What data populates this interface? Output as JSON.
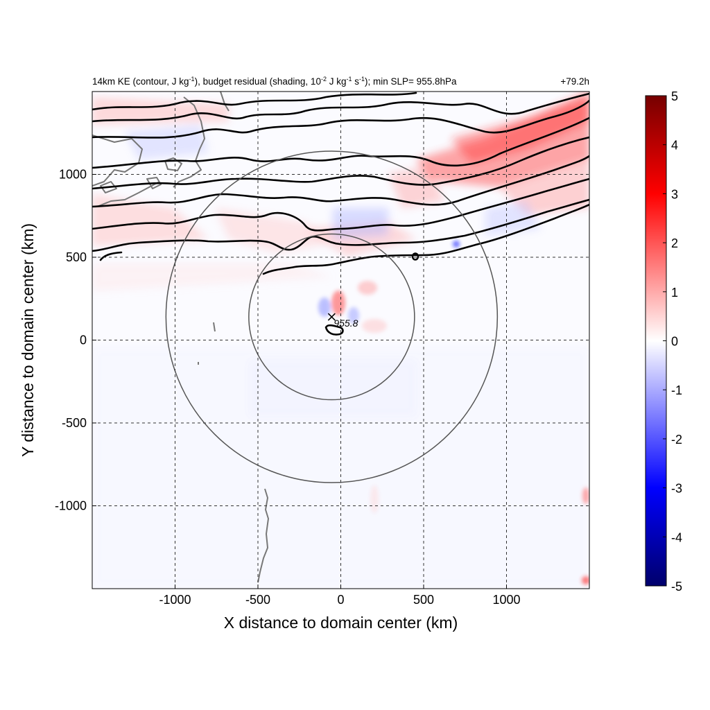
{
  "chart_data": {
    "type": "heatmap",
    "title_parts": {
      "p1": "14km KE (contour, J kg",
      "p1_sup": "-1",
      "p2": "), budget residual (shading, 10",
      "p2_sup": "-2",
      "p3": " J kg",
      "p3_sup": "-1",
      "p4": " s",
      "p4_sup": "-1",
      "p5": "); min SLP= 955.8hPa"
    },
    "time_label": "+79.2h",
    "xlabel": "X distance to domain center (km)",
    "ylabel": "Y distance to domain center (km)",
    "xlim": [
      -1500,
      1500
    ],
    "ylim": [
      -1500,
      1500
    ],
    "xticks": [
      -1000,
      -500,
      0,
      500,
      1000
    ],
    "yticks": [
      -1000,
      -500,
      0,
      500,
      1000
    ],
    "grid": true,
    "colorbar": {
      "min": -5,
      "max": 5,
      "ticks": [
        5,
        4,
        3,
        2,
        1,
        0,
        -1,
        -2,
        -3,
        -4,
        -5
      ],
      "colors": [
        "#00006b",
        "#0000ff",
        "#ffffff",
        "#ff0000",
        "#760000"
      ]
    },
    "storm_center": {
      "x": -55,
      "y": 140
    },
    "min_slp_annotation": "955.8",
    "circles_radius_km": [
      500,
      1000
    ],
    "contour_color": "#000000",
    "coastline_color": "#777777"
  }
}
